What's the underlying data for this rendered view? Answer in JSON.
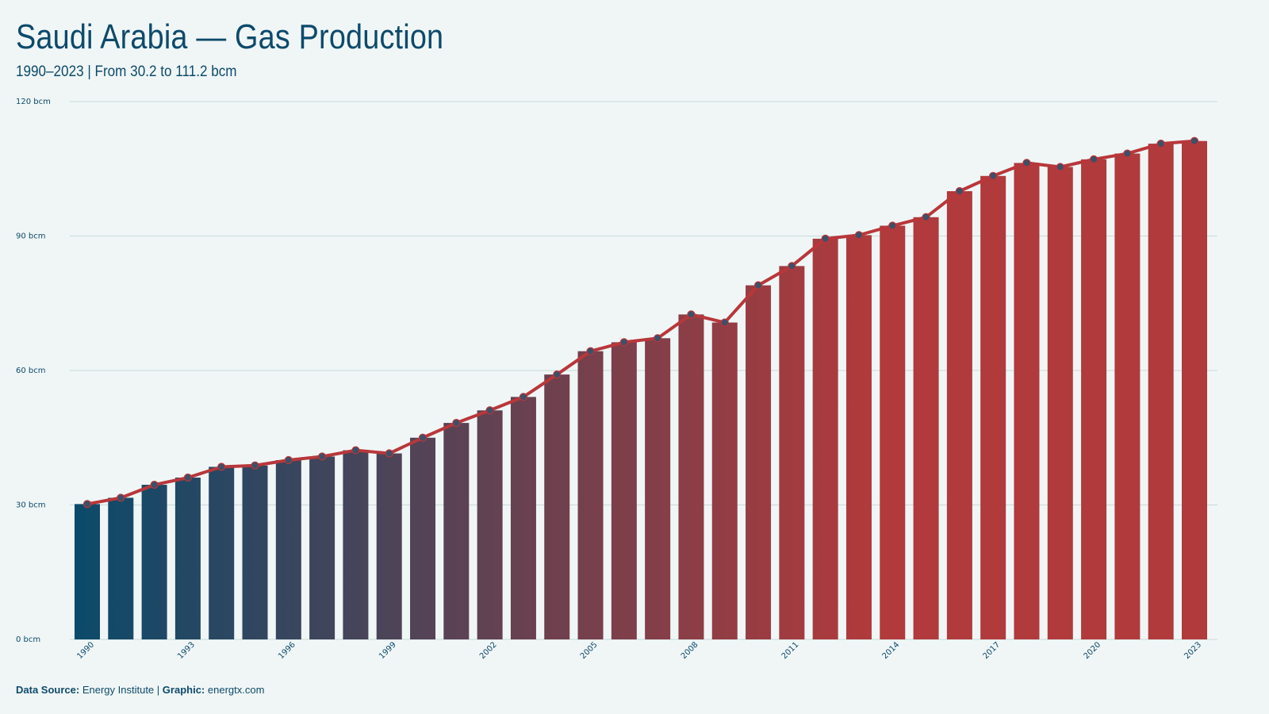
{
  "title": "Saudi Arabia — Gas Production",
  "subtitle": "1990–2023 | From 30.2 to 111.2 bcm",
  "footer": {
    "source_label": "Data Source:",
    "source_value": "Energy Institute",
    "separator": "|",
    "graphic_label": "Graphic:",
    "graphic_value": "energtx.com"
  },
  "colors": {
    "background": "#f0f6f6",
    "bar_start": "#0b4a6a",
    "bar_end": "#b03a3c",
    "line": "#b8373b",
    "marker_fill": "#3d5068",
    "text": "#0d4a6b",
    "gridline": "#c9d9d9"
  },
  "chart_data": {
    "type": "bar",
    "title": "Saudi Arabia — Gas Production",
    "subtitle": "1990–2023 | From 30.2 to 111.2 bcm",
    "unit": "bcm",
    "x": [
      1990,
      1991,
      1992,
      1993,
      1994,
      1995,
      1996,
      1997,
      1998,
      1999,
      2000,
      2001,
      2002,
      2003,
      2004,
      2005,
      2006,
      2007,
      2008,
      2009,
      2010,
      2011,
      2012,
      2013,
      2014,
      2015,
      2016,
      2017,
      2018,
      2019,
      2020,
      2021,
      2022,
      2023
    ],
    "values": [
      30.2,
      31.6,
      34.5,
      36.1,
      38.5,
      38.8,
      40.0,
      40.8,
      42.2,
      41.5,
      45.0,
      48.3,
      51.1,
      54.1,
      59.1,
      64.3,
      66.3,
      67.2,
      72.5,
      70.7,
      79.0,
      83.3,
      89.4,
      90.2,
      92.3,
      94.2,
      100.0,
      103.4,
      106.3,
      105.4,
      107.1,
      108.4,
      110.6,
      111.2
    ],
    "yticks": [
      0,
      30,
      60,
      90,
      120
    ],
    "ytick_labels": [
      "0 bcm",
      "30 bcm",
      "60 bcm",
      "90 bcm",
      "120 bcm"
    ],
    "xticks": [
      1990,
      1993,
      1996,
      1999,
      2002,
      2005,
      2008,
      2011,
      2014,
      2017,
      2020,
      2023
    ],
    "ylim": [
      0,
      120
    ],
    "overlay_line": true,
    "grid": true
  }
}
